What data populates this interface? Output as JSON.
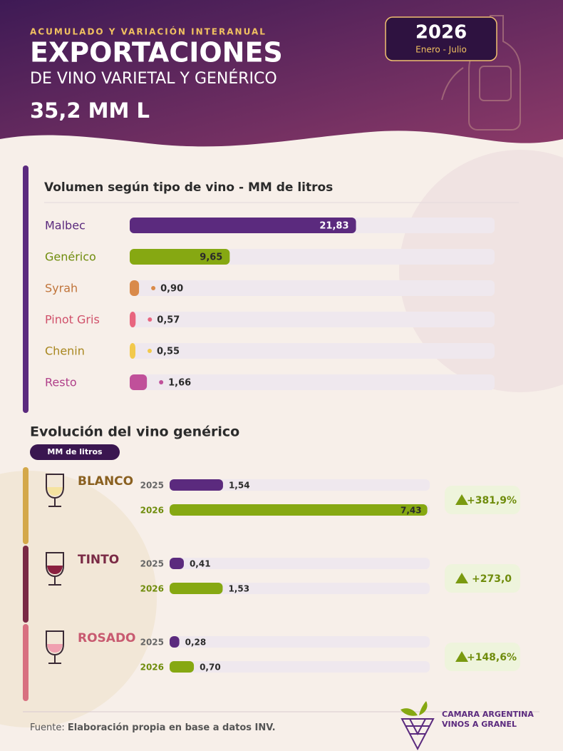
{
  "header": {
    "kicker": "ACUMULADO Y VARIACIÓN INTERANUAL",
    "title": "EXPORTACIONES",
    "subtitle": "DE VINO VARIETAL Y GENÉRICO",
    "total": "35,2 MM L",
    "year": "2026",
    "period": "Enero - Julio"
  },
  "chart_data": [
    {
      "type": "bar",
      "title": "Volumen según tipo de vino - MM de litros",
      "categories": [
        "Malbec",
        "Genérico",
        "Syrah",
        "Pinot Gris",
        "Chenin",
        "Resto"
      ],
      "values": [
        21.83,
        9.65,
        0.9,
        0.57,
        0.55,
        1.66
      ],
      "value_labels": [
        "21,83",
        "9,65",
        "0,90",
        "0,57",
        "0,55",
        "1,66"
      ],
      "colors": [
        "#5b2a7e",
        "#86a812",
        "#d98a4a",
        "#e8657f",
        "#f2c94c",
        "#c0509a"
      ],
      "label_colors": [
        "#5b2a7e",
        "#6f8c0c",
        "#c0743a",
        "#d0506a",
        "#a8861e",
        "#b0408a"
      ],
      "xlim": [
        0,
        35.2
      ]
    },
    {
      "type": "grouped-bar",
      "title": "Evolución del vino genérico",
      "unit": "MM de litros",
      "categories": [
        "BLANCO",
        "TINTO",
        "ROSADO"
      ],
      "group_colors": [
        "#8a6020",
        "#7a2a45",
        "#c85a70"
      ],
      "series": [
        {
          "name": "2025",
          "color": "#5b2a7e",
          "values": [
            1.54,
            0.41,
            0.28
          ],
          "value_labels": [
            "1,54",
            "0,41",
            "0,28"
          ]
        },
        {
          "name": "2026",
          "color": "#86a812",
          "values": [
            7.43,
            1.53,
            0.7
          ],
          "value_labels": [
            "7,43",
            "1,53",
            "0,70"
          ]
        }
      ],
      "changes": [
        381.9,
        273.0,
        148.6
      ],
      "change_labels": [
        "+381,9%",
        "+273,0",
        "+148,6%"
      ],
      "xlim": [
        0,
        7.5
      ]
    }
  ],
  "footer": {
    "source_label": "Fuente:",
    "source": "Elaboración propia en base a datos INV.",
    "org_line1": "CAMARA ARGENTINA",
    "org_line2": "VINOS A GRANEL"
  }
}
